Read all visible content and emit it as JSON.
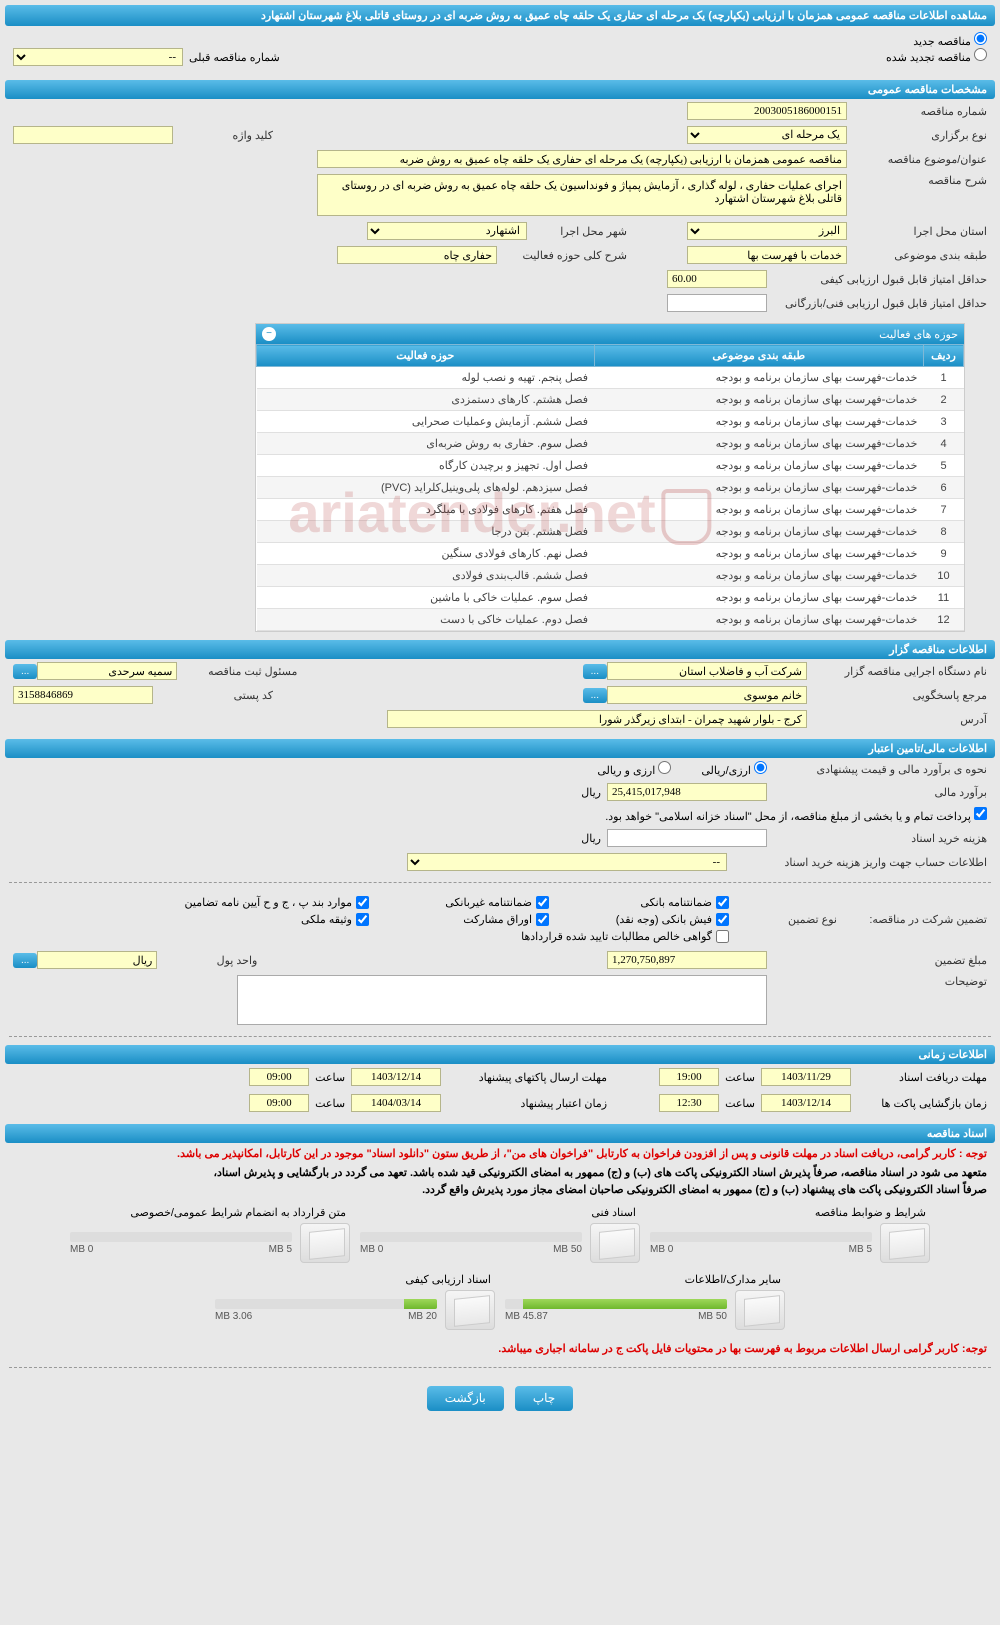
{
  "page_title": "مشاهده اطلاعات مناقصه عمومی همزمان با ارزیابی (یکپارچه) یک مرحله ای حفاری یک حلقه چاه عمیق به روش ضربه ای در روستای قاتلی بلاغ شهرستان اشتهارد",
  "radio": {
    "new": "مناقصه جدید",
    "renewed": "مناقصه تجدید شده",
    "prev_label": "شماره مناقصه قبلی",
    "prev_val": "--"
  },
  "sections": {
    "general": "مشخصات مناقصه عمومی",
    "agent": "اطلاعات مناقصه گزار",
    "financial": "اطلاعات مالی/تامین اعتبار",
    "timing": "اطلاعات زمانی",
    "docs": "اسناد مناقصه",
    "activities_title": "حوزه های فعالیت"
  },
  "general": {
    "tender_no_label": "شماره مناقصه",
    "tender_no": "2003005186000151",
    "type_label": "نوع برگزاری",
    "type": "یک مرحله ای",
    "keyword_label": "کلید واژه",
    "keyword": "",
    "subject_label": "عنوان/موضوع مناقصه",
    "subject": "مناقصه عمومی همزمان با ارزیابی (یکپارچه) یک مرحله ای حفاری یک حلقه چاه عمیق به روش ضربه",
    "desc_label": "شرح مناقصه",
    "desc": "اجرای عملیات حفاری ، لوله گذاری ، آزمایش پمپاژ و فونداسیون یک حلقه چاه عمیق به روش ضربه ای در روستای قاتلی بلاغ شهرستان اشتهارد",
    "province_label": "استان محل اجرا",
    "province": "البرز",
    "city_label": "شهر محل اجرا",
    "city": "اشتهارد",
    "category_label": "طبقه بندی موضوعی",
    "category": "خدمات با فهرست بها",
    "scope_label": "شرح کلی حوزه فعالیت",
    "scope": "حفاری چاه",
    "min_quality_label": "حداقل امتیاز قابل قبول ارزیابی کیفی",
    "min_quality": "60.00",
    "min_tech_label": "حداقل امتیاز قابل قبول ارزیابی فنی/بازرگانی",
    "min_tech": ""
  },
  "activities": {
    "cols": {
      "row": "ردیف",
      "category": "طبقه بندی موضوعی",
      "scope": "حوزه فعالیت"
    },
    "category_text": "خدمات-فهرست بهای سازمان برنامه و بودجه",
    "rows": [
      {
        "n": 1,
        "scope": "فصل پنجم. تهیه و نصب لوله"
      },
      {
        "n": 2,
        "scope": "فصل هشتم. کارهای دستمزدی"
      },
      {
        "n": 3,
        "scope": "فصل ششم. آزمایش وعملیات صحرایی"
      },
      {
        "n": 4,
        "scope": "فصل سوم. حفاری به روش ضربه‌ای"
      },
      {
        "n": 5,
        "scope": "فصل اول. تجهیز و برچیدن کارگاه"
      },
      {
        "n": 6,
        "scope": "فصل سیزدهم. لوله‌های پلی‌وینیل‌کلراید (PVC)"
      },
      {
        "n": 7,
        "scope": "فصل هفتم. کارهای فولادی با میلگرد"
      },
      {
        "n": 8,
        "scope": "فصل هشتم. بتن درجا"
      },
      {
        "n": 9,
        "scope": "فصل نهم. کارهای فولادی سنگین"
      },
      {
        "n": 10,
        "scope": "فصل ششم. قالب‌بندی فولادی"
      },
      {
        "n": 11,
        "scope": "فصل سوم. عملیات خاکی با ماشین"
      },
      {
        "n": 12,
        "scope": "فصل دوم. عملیات خاکی با دست"
      }
    ]
  },
  "agent": {
    "org_label": "نام دستگاه اجرایی مناقصه گزار",
    "org": "شرکت آب و فاضلاب استان",
    "reg_resp_label": "مسئول ثبت مناقصه",
    "reg_resp": "سمیه سرحدی",
    "responder_label": "مرجع پاسخگویی",
    "responder": "خانم موسوی",
    "postal_label": "کد پستی",
    "postal": "3158846869",
    "address_label": "آدرس",
    "address": "کرج - بلوار شهید چمران - ابتدای زیرگذر شورا"
  },
  "financial": {
    "method_label": "نحوه ی برآورد مالی و قیمت پیشنهادی",
    "opt_rial": "ارزی/ریالی",
    "opt_curr": "ارزی و ریالی",
    "estimate_label": "برآورد مالی",
    "estimate": "25,415,017,948",
    "unit_rial": "ریال",
    "payment_note": "پرداخت تمام و یا بخشی از مبلغ مناقصه، از محل \"اسناد خزانه اسلامی\" خواهد بود.",
    "doc_cost_label": "هزینه خرید اسناد",
    "doc_cost": "",
    "account_label": "اطلاعات حساب جهت واریز هزینه خرید اسناد",
    "account": "--",
    "guarantee_label": "تضمین شرکت در مناقصه:",
    "guarantee_type_label": "نوع تضمین",
    "chk": {
      "bank": "ضمانتنامه بانکی",
      "nonbank": "ضمانتنامه غیربانکی",
      "terms": "موارد بند پ ، ج و ح آیین نامه تضامین",
      "cash": "فیش بانکی (وجه نقد)",
      "bonds": "اوراق مشارکت",
      "property": "وثیقه ملکی",
      "contract": "گواهی خالص مطالبات تایید شده قراردادها"
    },
    "gamount_label": "مبلغ تضمین",
    "gamount": "1,270,750,897",
    "money_unit_label": "واحد پول",
    "money_unit": "ریال",
    "notes_label": "توضیحات"
  },
  "timing": {
    "receive_label": "مهلت دریافت اسناد",
    "receive_date": "1403/11/29",
    "time_label": "ساعت",
    "receive_time": "19:00",
    "send_label": "مهلت ارسال پاکتهای پیشنهاد",
    "send_date": "1403/12/14",
    "send_time": "09:00",
    "open_label": "زمان بازگشایی پاکت ها",
    "open_date": "1403/12/14",
    "open_time": "12:30",
    "valid_label": "زمان اعتبار پیشنهاد",
    "valid_date": "1404/03/14",
    "valid_time": "09:00"
  },
  "docs": {
    "note1": "توجه : کاربر گرامی، دریافت اسناد در مهلت قانونی و پس از افزودن فراخوان به کارتابل \"فراخوان های من\"، از طریق ستون \"دانلود اسناد\" موجود در این کارتابل، امکانپذیر می باشد.",
    "note2": "متعهد می شود در اسناد مناقصه، صرفاً پذیرش اسناد الکترونیکی پاکت های (ب) و (ج) ممهور به امضای الکترونیکی قید شده باشد. تعهد می گردد در بارگشایی و پذیرش اسناد،",
    "note3": "صرفاً اسناد الکترونیکی پاکت های پیشنهاد (ب) و (ج) ممهور به امضای الکترونیکی صاحبان امضای مجاز مورد پذیرش واقع گردد.",
    "items": [
      {
        "title": "شرایط و ضوابط مناقصه",
        "used": "0 MB",
        "total": "5 MB",
        "pct": 0
      },
      {
        "title": "اسناد فنی",
        "used": "0 MB",
        "total": "50 MB",
        "pct": 0
      },
      {
        "title": "متن قرارداد به انضمام شرایط عمومی/خصوصی",
        "used": "0 MB",
        "total": "5 MB",
        "pct": 0
      },
      {
        "title": "سایر مدارک/اطلاعات",
        "used": "45.87 MB",
        "total": "50 MB",
        "pct": 92
      },
      {
        "title": "اسناد ارزیابی کیفی",
        "used": "3.06 MB",
        "total": "20 MB",
        "pct": 15
      }
    ],
    "footer_note": "توجه: کاربر گرامی ارسال اطلاعات مربوط به فهرست بها در محتویات فایل پاکت ج در سامانه اجباری میباشد."
  },
  "buttons": {
    "print": "چاپ",
    "back": "بازگشت"
  },
  "watermark": "ariatender.net",
  "colors": {
    "header_top": "#5abce8",
    "header_bot": "#1a8ec5",
    "yellow": "#feffc8",
    "grey_bg": "#e8e8e8",
    "red": "#d00"
  }
}
